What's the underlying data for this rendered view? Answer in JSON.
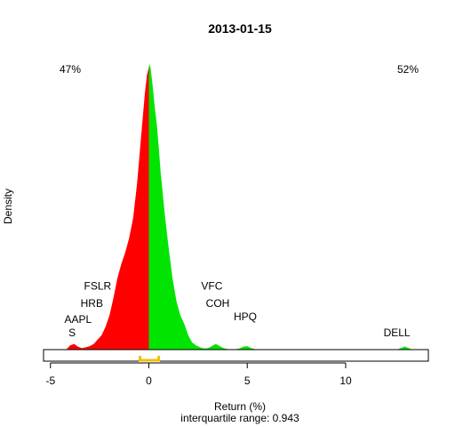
{
  "chart_data": {
    "type": "area",
    "title": "2013-01-15",
    "xlabel": "Return (%)",
    "ylabel": "Density",
    "subtitle": "interquartile range: 0.943",
    "xlim": [
      -5.35,
      14.2
    ],
    "ylim": [
      0,
      1.0
    ],
    "xticks": [
      -5,
      0,
      5,
      10
    ],
    "xtick_labels": [
      "-5",
      "0",
      "5",
      "10"
    ],
    "left_share": "47%",
    "right_share": "52%",
    "colors": {
      "negative": "#ff0000",
      "positive": "#00e400",
      "baseline": "#c0c0c0",
      "iqr": "#f0c000",
      "left_share": "#ff0000",
      "right_share": "#008000"
    },
    "density": {
      "x": [
        -4.2,
        -4.0,
        -3.8,
        -3.6,
        -3.4,
        -3.2,
        -3.0,
        -2.8,
        -2.6,
        -2.4,
        -2.2,
        -2.0,
        -1.8,
        -1.6,
        -1.4,
        -1.2,
        -1.0,
        -0.8,
        -0.6,
        -0.4,
        -0.2,
        -0.1,
        0.0,
        0.05,
        0.1,
        0.2,
        0.3,
        0.4,
        0.5,
        0.6,
        0.8,
        1.0,
        1.2,
        1.4,
        1.6,
        1.8,
        2.0,
        2.2,
        2.4,
        2.6,
        2.8,
        3.0,
        3.2,
        3.4,
        3.6,
        3.8,
        4.0,
        4.3,
        4.6,
        4.8,
        5.0,
        5.2,
        5.5,
        6.0,
        8.0,
        10.0,
        12.0,
        12.6,
        12.8,
        13.0,
        13.2,
        13.4,
        14.0
      ],
      "y": [
        0.0,
        0.015,
        0.02,
        0.01,
        0.005,
        0.008,
        0.012,
        0.02,
        0.035,
        0.05,
        0.08,
        0.12,
        0.18,
        0.25,
        0.3,
        0.34,
        0.39,
        0.46,
        0.58,
        0.74,
        0.9,
        0.96,
        0.99,
        1.0,
        0.98,
        0.92,
        0.85,
        0.79,
        0.71,
        0.62,
        0.48,
        0.36,
        0.25,
        0.17,
        0.12,
        0.09,
        0.05,
        0.025,
        0.015,
        0.008,
        0.004,
        0.005,
        0.012,
        0.02,
        0.012,
        0.005,
        0.002,
        0.0,
        0.004,
        0.01,
        0.012,
        0.005,
        0.0,
        0.0,
        0.0,
        0.0,
        0.0,
        0.0,
        0.005,
        0.011,
        0.005,
        0.0,
        0.0
      ]
    },
    "iqr": [
      -0.45,
      0.5
    ],
    "annotations": [
      {
        "label": "FSLR",
        "x": -2.6,
        "y": 0.21
      },
      {
        "label": "HRB",
        "x": -2.9,
        "y": 0.15
      },
      {
        "label": "AAPL",
        "x": -3.6,
        "y": 0.094
      },
      {
        "label": "S",
        "x": -3.9,
        "y": 0.047
      },
      {
        "label": "VFC",
        "x": 3.2,
        "y": 0.21
      },
      {
        "label": "COH",
        "x": 3.5,
        "y": 0.15
      },
      {
        "label": "HPQ",
        "x": 4.9,
        "y": 0.103
      },
      {
        "label": "DELL",
        "x": 12.6,
        "y": 0.047
      }
    ]
  }
}
